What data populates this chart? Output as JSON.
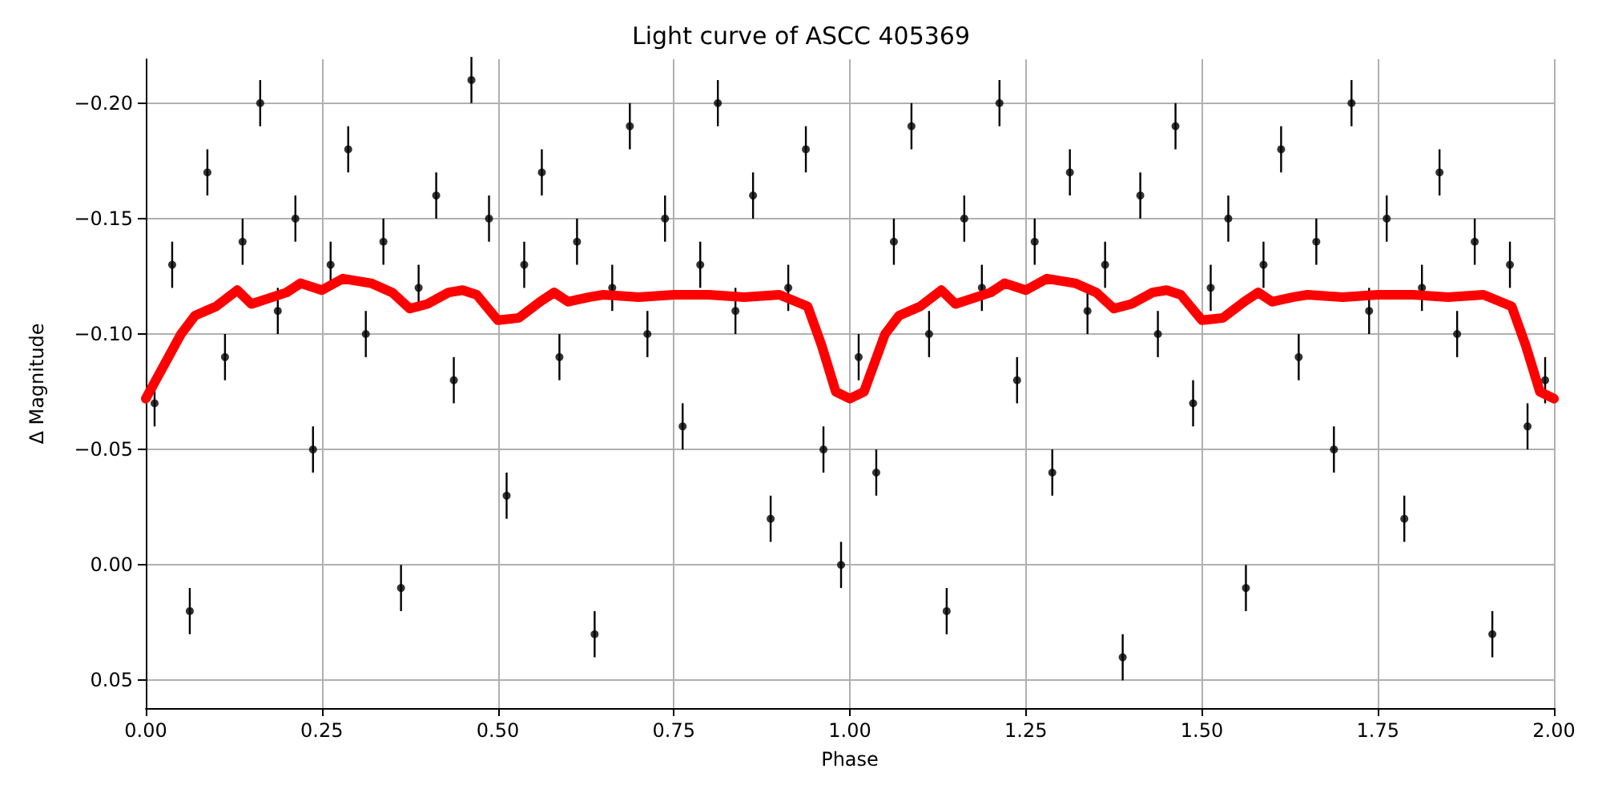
{
  "chart_data": {
    "type": "scatter",
    "title": "Light curve of ASCC 405369",
    "xlabel": "Phase",
    "ylabel": "Δ Magnitude",
    "xlim": [
      0,
      2
    ],
    "xticks": [
      {
        "value": 0,
        "label": "0.00"
      },
      {
        "value": 0.25,
        "label": "0.25"
      },
      {
        "value": 0.5,
        "label": "0.50"
      },
      {
        "value": 0.75,
        "label": "0.75"
      },
      {
        "value": 1,
        "label": "1.00"
      },
      {
        "value": 1.25,
        "label": "1.25"
      },
      {
        "value": 1.5,
        "label": "1.50"
      },
      {
        "value": 1.75,
        "label": "1.75"
      },
      {
        "value": 2,
        "label": "2.00"
      }
    ],
    "ylim": [
      0.062,
      -0.219
    ],
    "yticks": [
      {
        "value": 0.05,
        "label": "0.05"
      },
      {
        "value": 0,
        "label": "0.00"
      },
      {
        "value": -0.05,
        "label": "−0.05"
      },
      {
        "value": -0.1,
        "label": "−0.10"
      },
      {
        "value": -0.15,
        "label": "−0.15"
      },
      {
        "value": -0.2,
        "label": "−0.20"
      }
    ],
    "grid": true,
    "series": [
      {
        "color": "#000000",
        "marker": "circle",
        "x": [
          0.0125,
          0.0375,
          0.0625,
          0.0875,
          0.1125,
          0.1375,
          0.1625,
          0.1875,
          0.2125,
          0.2375,
          0.2625,
          0.2875,
          0.3125,
          0.3375,
          0.3625,
          0.3875,
          0.4125,
          0.4375,
          0.4625,
          0.4875,
          0.5125,
          0.5375,
          0.5625,
          0.5875,
          0.6125,
          0.6375,
          0.6625,
          0.6875,
          0.7125,
          0.7375,
          0.7625,
          0.7875,
          0.8125,
          0.8375,
          0.8625,
          0.8875,
          0.9125,
          0.9375,
          0.9625,
          0.9875,
          1.0125,
          1.0375,
          1.0625,
          1.0875,
          1.1125,
          1.1375,
          1.1625,
          1.1875,
          1.2125,
          1.2375,
          1.2625,
          1.2875,
          1.3125,
          1.3375,
          1.3625,
          1.3875,
          1.4125,
          1.4375,
          1.4625,
          1.4875,
          1.5125,
          1.5375,
          1.5625,
          1.5875,
          1.6125,
          1.6375,
          1.6625,
          1.6875,
          1.7125,
          1.7375,
          1.7625,
          1.7875,
          1.8125,
          1.8375,
          1.8625,
          1.8875,
          1.9125,
          1.9375,
          1.9625,
          1.9875
        ],
        "values": [
          -0.07,
          -0.13,
          0.02,
          -0.17,
          -0.09,
          -0.14,
          -0.2,
          -0.11,
          -0.15,
          -0.05,
          -0.13,
          -0.18,
          -0.1,
          -0.14,
          0.01,
          -0.12,
          -0.16,
          -0.08,
          -0.21,
          -0.15,
          -0.03,
          -0.13,
          -0.17,
          -0.09,
          -0.14,
          0.03,
          -0.12,
          -0.19,
          -0.1,
          -0.15,
          -0.06,
          -0.13,
          -0.2,
          -0.11,
          -0.16,
          -0.02,
          -0.12,
          -0.18,
          -0.05,
          0.0,
          -0.09,
          -0.04,
          -0.14,
          -0.19,
          -0.1,
          0.02,
          -0.15,
          -0.12,
          -0.2,
          -0.08,
          -0.14,
          -0.04,
          -0.17,
          -0.11,
          -0.13,
          0.04,
          -0.16,
          -0.1,
          -0.19,
          -0.07,
          -0.12,
          -0.15,
          0.01,
          -0.13,
          -0.18,
          -0.09,
          -0.14,
          -0.05,
          -0.2,
          -0.11,
          -0.15,
          -0.02,
          -0.12,
          -0.17,
          -0.1,
          -0.14,
          0.03,
          -0.13,
          -0.06,
          -0.08
        ],
        "errors": [
          0.01,
          0.01,
          0.01,
          0.01,
          0.01,
          0.01,
          0.01,
          0.01,
          0.01,
          0.01,
          0.01,
          0.01,
          0.01,
          0.01,
          0.01,
          0.01,
          0.01,
          0.01,
          0.01,
          0.01,
          0.01,
          0.01,
          0.01,
          0.01,
          0.01,
          0.01,
          0.01,
          0.01,
          0.01,
          0.01,
          0.01,
          0.01,
          0.01,
          0.01,
          0.01,
          0.01,
          0.01,
          0.01,
          0.01,
          0.01,
          0.01,
          0.01,
          0.01,
          0.01,
          0.01,
          0.01,
          0.01,
          0.01,
          0.01,
          0.01,
          0.01,
          0.01,
          0.01,
          0.01,
          0.01,
          0.01,
          0.01,
          0.01,
          0.01,
          0.01,
          0.01,
          0.01,
          0.01,
          0.01,
          0.01,
          0.01,
          0.01,
          0.01,
          0.01,
          0.01,
          0.01,
          0.01,
          0.01,
          0.01,
          0.01,
          0.01,
          0.01,
          0.01,
          0.01,
          0.01
        ]
      },
      {
        "type": "line",
        "color": "#ff0000",
        "marker": "none",
        "line_style": "solid",
        "x": [
          0,
          0.05,
          0.07,
          0.1,
          0.13,
          0.15,
          0.2,
          0.22,
          0.25,
          0.28,
          0.32,
          0.35,
          0.375,
          0.4,
          0.43,
          0.45,
          0.47,
          0.5,
          0.53,
          0.56,
          0.58,
          0.6,
          0.63,
          0.65,
          0.7,
          0.75,
          0.8,
          0.85,
          0.9,
          0.94,
          0.96,
          0.98,
          1.0,
          1.02,
          1.05,
          1.07,
          1.1,
          1.13,
          1.15,
          1.2,
          1.22,
          1.25,
          1.28,
          1.32,
          1.35,
          1.375,
          1.4,
          1.43,
          1.45,
          1.47,
          1.5,
          1.53,
          1.56,
          1.58,
          1.6,
          1.63,
          1.65,
          1.7,
          1.75,
          1.8,
          1.85,
          1.9,
          1.94,
          1.96,
          1.98,
          2.0
        ],
        "values": [
          -0.072,
          -0.1,
          -0.108,
          -0.112,
          -0.119,
          -0.113,
          -0.118,
          -0.122,
          -0.119,
          -0.124,
          -0.122,
          -0.118,
          -0.111,
          -0.113,
          -0.118,
          -0.119,
          -0.117,
          -0.106,
          -0.107,
          -0.114,
          -0.118,
          -0.114,
          -0.116,
          -0.117,
          -0.116,
          -0.117,
          -0.117,
          -0.116,
          -0.117,
          -0.112,
          -0.095,
          -0.075,
          -0.072,
          -0.075,
          -0.1,
          -0.108,
          -0.112,
          -0.119,
          -0.113,
          -0.118,
          -0.122,
          -0.119,
          -0.124,
          -0.122,
          -0.118,
          -0.111,
          -0.113,
          -0.118,
          -0.119,
          -0.117,
          -0.106,
          -0.107,
          -0.114,
          -0.118,
          -0.114,
          -0.116,
          -0.117,
          -0.116,
          -0.117,
          -0.117,
          -0.116,
          -0.117,
          -0.112,
          -0.095,
          -0.075,
          -0.072
        ]
      }
    ]
  }
}
